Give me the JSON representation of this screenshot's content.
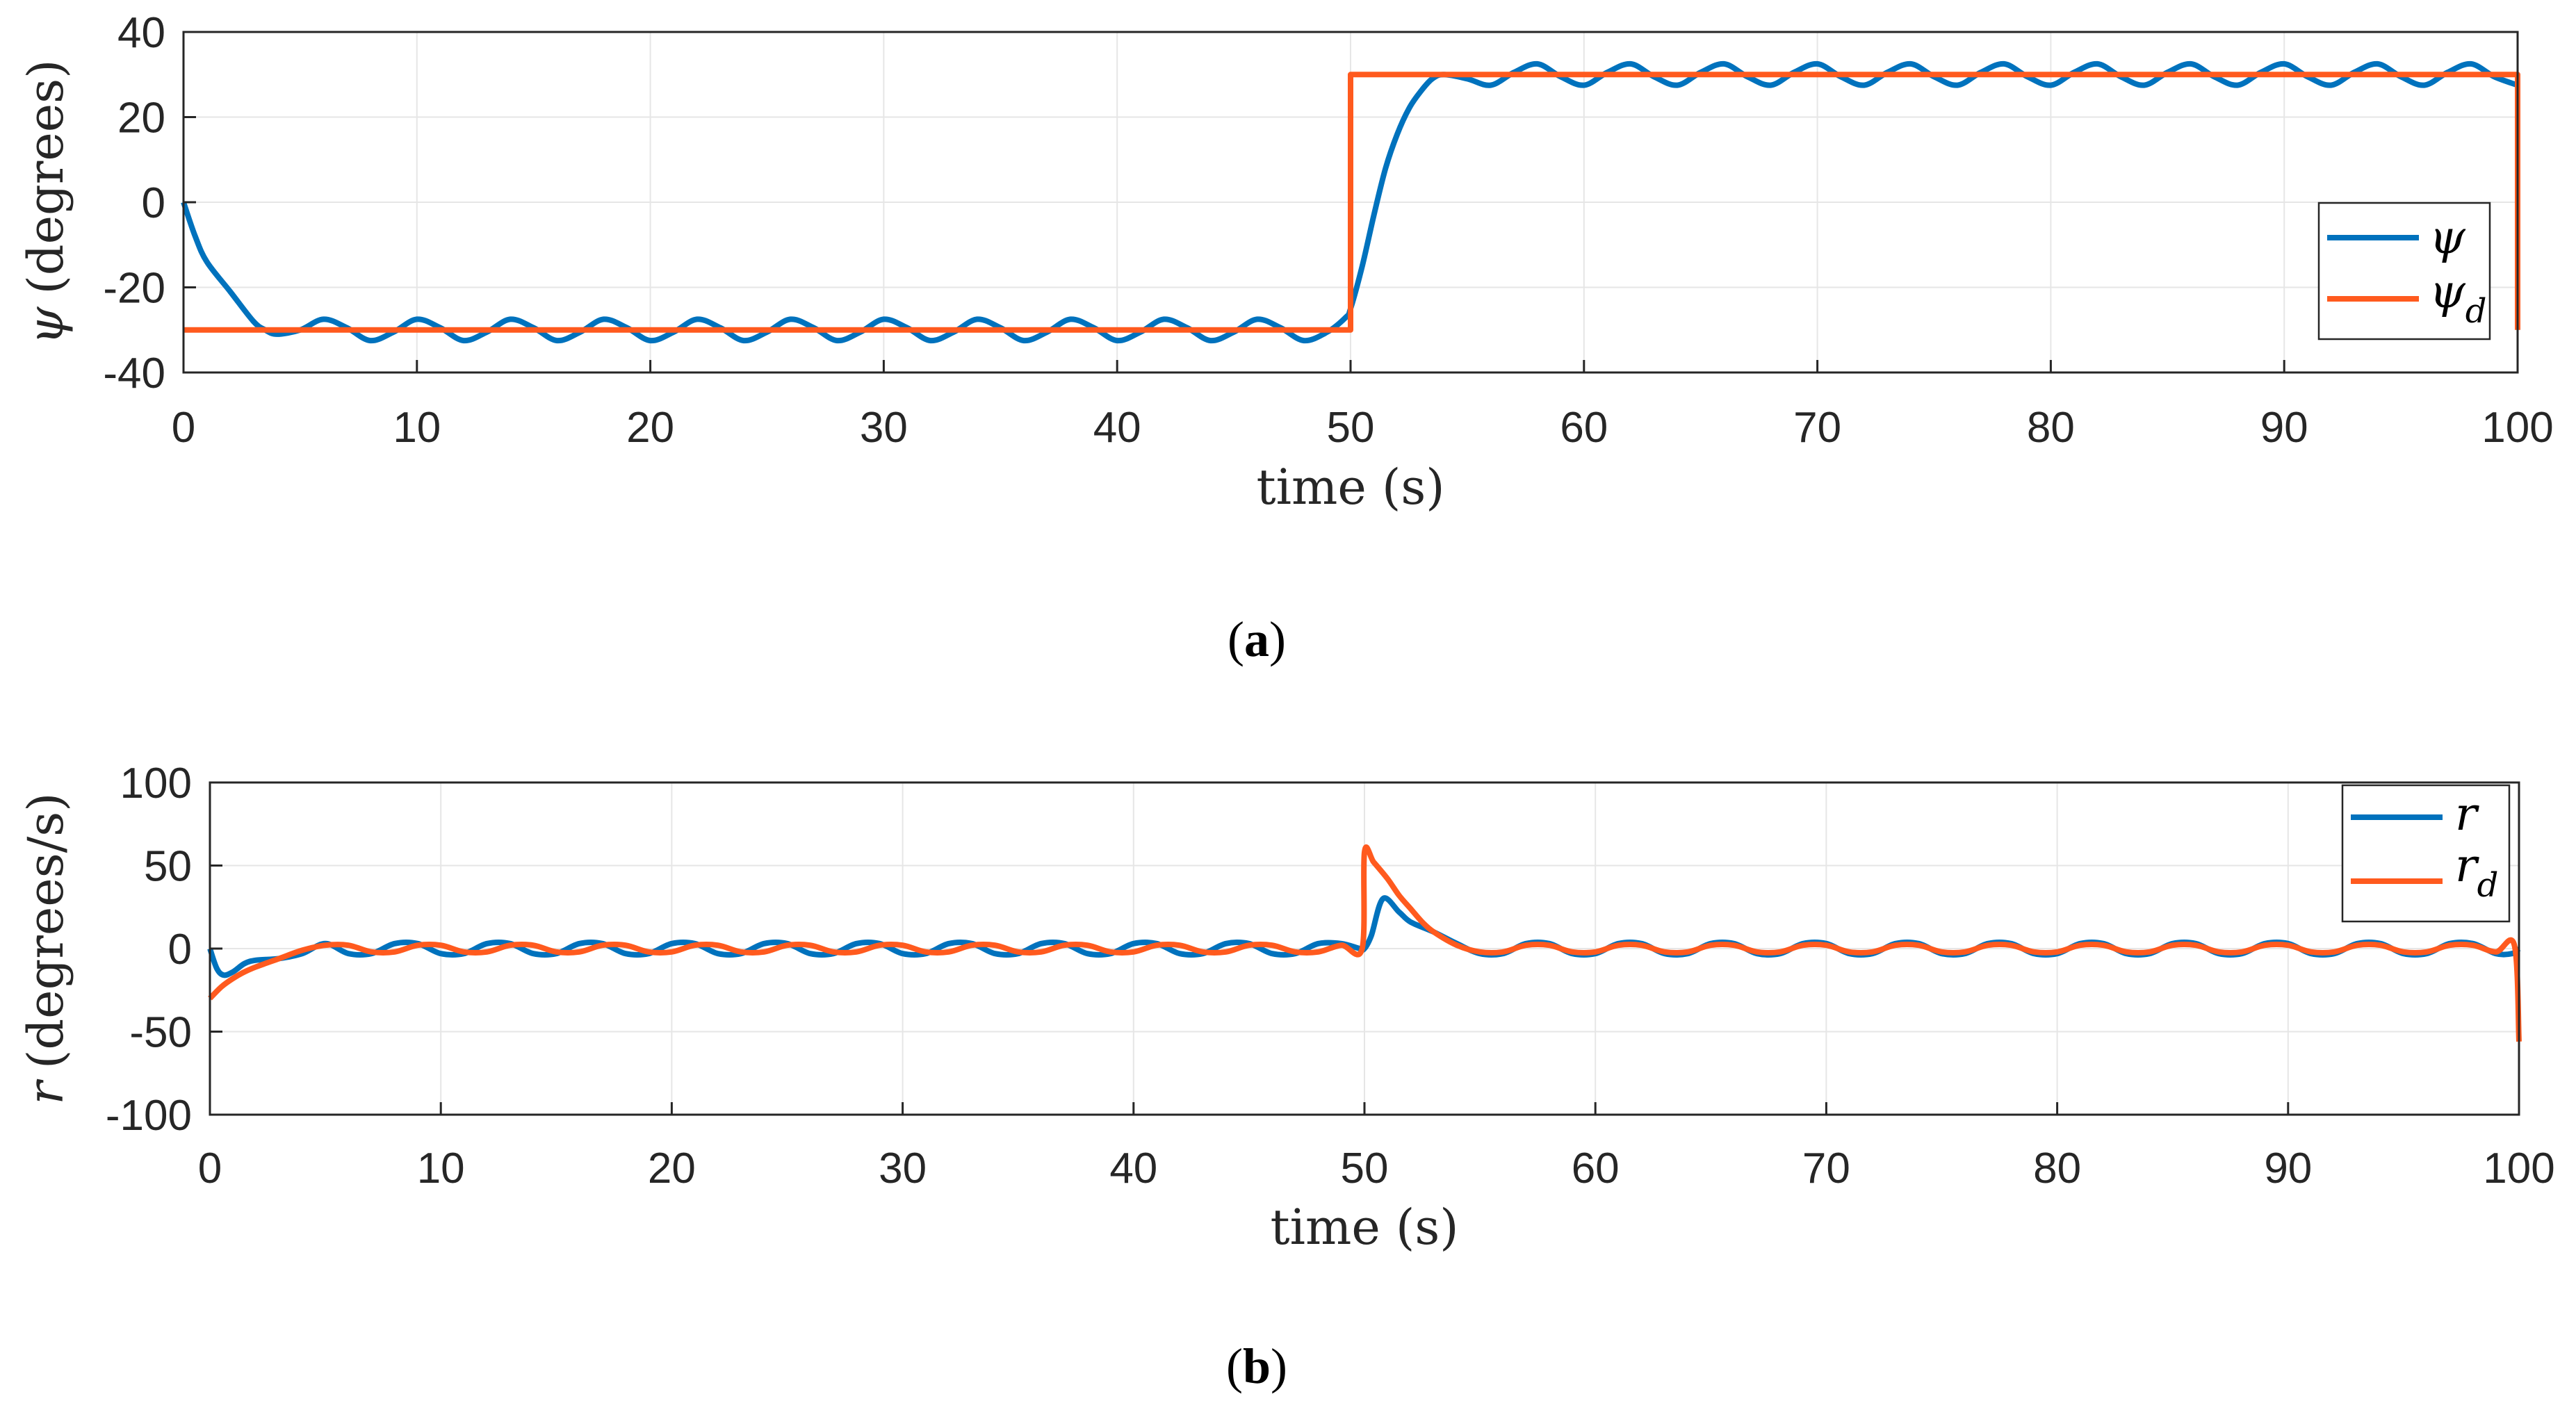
{
  "chart_data": [
    {
      "type": "line",
      "panel": "a",
      "caption": "a",
      "xlabel": "time (s)",
      "ylabel_symbol": "ψ",
      "ylabel": "(degrees)",
      "xlim": [
        0,
        100
      ],
      "ylim": [
        -40,
        40
      ],
      "xticks": [
        "0",
        "10",
        "20",
        "30",
        "40",
        "50",
        "60",
        "70",
        "80",
        "90",
        "100"
      ],
      "yticks": [
        "40",
        "20",
        "0",
        "-20",
        "-40"
      ],
      "grid": true,
      "legend_position": "right",
      "series": [
        {
          "name": "ψ",
          "legend_symbol": "ψ",
          "legend_sub": "",
          "color": "#0072BD",
          "x": [
            0,
            0.5,
            1,
            2,
            3,
            3.5,
            4,
            5,
            6,
            7,
            8,
            9,
            10,
            11,
            12,
            13,
            14,
            15,
            16,
            17,
            18,
            19,
            20,
            21,
            22,
            23,
            24,
            25,
            26,
            27,
            28,
            29,
            30,
            31,
            32,
            33,
            34,
            35,
            36,
            37,
            38,
            39,
            40,
            41,
            42,
            43,
            44,
            45,
            46,
            47,
            48,
            49,
            49.8,
            50,
            50.5,
            51,
            51.5,
            52,
            52.5,
            53,
            53.5,
            54,
            55,
            56,
            57,
            58,
            59,
            60,
            61,
            62,
            63,
            64,
            65,
            66,
            67,
            68,
            69,
            70,
            71,
            72,
            73,
            74,
            75,
            76,
            77,
            78,
            79,
            80,
            81,
            82,
            83,
            84,
            85,
            86,
            87,
            88,
            89,
            90,
            91,
            92,
            93,
            94,
            95,
            96,
            97,
            98,
            99,
            100
          ],
          "values": [
            0,
            -8,
            -14,
            -21,
            -28,
            -30,
            -31,
            -30,
            -27.5,
            -29.5,
            -32.5,
            -30.5,
            -27.5,
            -29.5,
            -32.5,
            -30.5,
            -27.5,
            -29.5,
            -32.5,
            -30.5,
            -27.5,
            -29.5,
            -32.5,
            -30.5,
            -27.5,
            -29.5,
            -32.5,
            -30.5,
            -27.5,
            -29.5,
            -32.5,
            -30.5,
            -27.5,
            -29.5,
            -32.5,
            -30.5,
            -27.5,
            -29.5,
            -32.5,
            -30.5,
            -27.5,
            -29.5,
            -32.5,
            -30.5,
            -27.5,
            -29.5,
            -32.5,
            -30.5,
            -27.5,
            -29.5,
            -32.5,
            -30.5,
            -27,
            -25,
            -15,
            -3,
            8,
            16,
            22,
            26,
            29,
            30,
            29,
            27.5,
            30.5,
            32.5,
            29.5,
            27.5,
            30.5,
            32.5,
            29.5,
            27.5,
            30.5,
            32.5,
            29.5,
            27.5,
            30.5,
            32.5,
            29.5,
            27.5,
            30.5,
            32.5,
            29.5,
            27.5,
            30.5,
            32.5,
            29.5,
            27.5,
            30.5,
            32.5,
            29.5,
            27.5,
            30.5,
            32.5,
            29.5,
            27.5,
            30.5,
            32.5,
            29.5,
            27.5,
            30.5,
            32.5,
            29.5,
            27.5,
            30.5,
            32.5,
            29.5,
            27.5
          ]
        },
        {
          "name": "ψd",
          "legend_symbol": "ψ",
          "legend_sub": "d",
          "color": "#FF5A1E",
          "x": [
            0,
            50,
            50,
            100,
            100
          ],
          "values": [
            -30,
            -30,
            30,
            30,
            -30
          ]
        }
      ]
    },
    {
      "type": "line",
      "panel": "b",
      "caption": "b",
      "xlabel": "time (s)",
      "ylabel_symbol": "r",
      "ylabel": "(degrees/s)",
      "xlim": [
        0,
        100
      ],
      "ylim": [
        -100,
        100
      ],
      "xticks": [
        "0",
        "10",
        "20",
        "30",
        "40",
        "50",
        "60",
        "70",
        "80",
        "90",
        "100"
      ],
      "yticks": [
        "100",
        "50",
        "0",
        "-50",
        "-100"
      ],
      "grid": true,
      "legend_position": "top-right",
      "series": [
        {
          "name": "r",
          "legend_symbol": "r",
          "legend_sub": "",
          "color": "#0072BD",
          "x": [
            0,
            0.3,
            0.6,
            1,
            1.5,
            2,
            3,
            4,
            5,
            6,
            7,
            8,
            9,
            10,
            11,
            12,
            13,
            14,
            15,
            16,
            17,
            18,
            19,
            20,
            21,
            22,
            23,
            24,
            25,
            26,
            27,
            28,
            29,
            30,
            31,
            32,
            33,
            34,
            35,
            36,
            37,
            38,
            39,
            40,
            41,
            42,
            43,
            44,
            45,
            46,
            47,
            48,
            49,
            49.8,
            50,
            50.3,
            50.8,
            51.5,
            52,
            53,
            54,
            55,
            56,
            57,
            58,
            59,
            60,
            61,
            62,
            63,
            64,
            65,
            66,
            67,
            68,
            69,
            70,
            71,
            72,
            73,
            74,
            75,
            76,
            77,
            78,
            79,
            80,
            81,
            82,
            83,
            84,
            85,
            86,
            87,
            88,
            89,
            90,
            91,
            92,
            93,
            94,
            95,
            96,
            97,
            98,
            99,
            99.7,
            100
          ],
          "values": [
            0,
            -12,
            -16,
            -14,
            -9,
            -7,
            -6,
            -3,
            3,
            -3,
            -3,
            3,
            3,
            -3,
            -3,
            3,
            3,
            -3,
            -3,
            3,
            3,
            -3,
            -3,
            3,
            3,
            -3,
            -3,
            3,
            3,
            -3,
            -3,
            3,
            3,
            -3,
            -3,
            3,
            3,
            -3,
            -3,
            3,
            3,
            -3,
            -3,
            3,
            3,
            -3,
            -3,
            3,
            3,
            -3,
            -3,
            3,
            3,
            0,
            0,
            8,
            30,
            22,
            16,
            10,
            3,
            -3,
            -3,
            3,
            3,
            -3,
            -3,
            3,
            3,
            -3,
            -3,
            3,
            3,
            -3,
            -3,
            3,
            3,
            -3,
            -3,
            3,
            3,
            -3,
            -3,
            3,
            3,
            -3,
            -3,
            3,
            3,
            -3,
            -3,
            3,
            3,
            -3,
            -3,
            3,
            3,
            -3,
            -3,
            3,
            3,
            -3,
            -3,
            3,
            3,
            -3,
            -3,
            0
          ]
        },
        {
          "name": "rd",
          "legend_symbol": "r",
          "legend_sub": "d",
          "color": "#FF5A1E",
          "x": [
            0,
            0.5,
            1,
            1.5,
            2,
            3,
            4,
            5,
            6,
            7,
            8,
            9,
            10,
            11,
            12,
            13,
            14,
            15,
            16,
            17,
            18,
            19,
            20,
            21,
            22,
            23,
            24,
            25,
            26,
            27,
            28,
            29,
            30,
            31,
            32,
            33,
            34,
            35,
            36,
            37,
            38,
            39,
            40,
            41,
            42,
            43,
            44,
            45,
            46,
            47,
            48,
            49,
            49.9,
            50,
            50.4,
            51,
            51.5,
            52,
            52.5,
            53,
            54,
            55,
            56,
            57,
            58,
            59,
            60,
            61,
            62,
            63,
            64,
            65,
            66,
            67,
            68,
            69,
            70,
            71,
            72,
            73,
            74,
            75,
            76,
            77,
            78,
            79,
            80,
            81,
            82,
            83,
            84,
            85,
            86,
            87,
            88,
            89,
            90,
            91,
            92,
            93,
            94,
            95,
            96,
            97,
            98,
            99,
            99.8,
            100
          ],
          "values": [
            -30,
            -23,
            -18,
            -14,
            -11,
            -6,
            -1,
            2,
            2,
            -2,
            -2,
            2,
            2,
            -2,
            -2,
            2,
            2,
            -2,
            -2,
            2,
            2,
            -2,
            -2,
            2,
            2,
            -2,
            -2,
            2,
            2,
            -2,
            -2,
            2,
            2,
            -2,
            -2,
            2,
            2,
            -2,
            -2,
            2,
            2,
            -2,
            -2,
            2,
            2,
            -2,
            -2,
            2,
            2,
            -2,
            -2,
            2,
            0,
            58,
            52,
            42,
            32,
            24,
            16,
            10,
            2,
            -2,
            -2,
            2,
            2,
            -2,
            -2,
            2,
            2,
            -2,
            -2,
            2,
            2,
            -2,
            -2,
            2,
            2,
            -2,
            -2,
            2,
            2,
            -2,
            -2,
            2,
            2,
            -2,
            -2,
            2,
            2,
            -2,
            -2,
            2,
            2,
            -2,
            -2,
            2,
            2,
            -2,
            -2,
            2,
            2,
            -2,
            -2,
            2,
            2,
            -2,
            2,
            -56
          ]
        }
      ]
    }
  ]
}
